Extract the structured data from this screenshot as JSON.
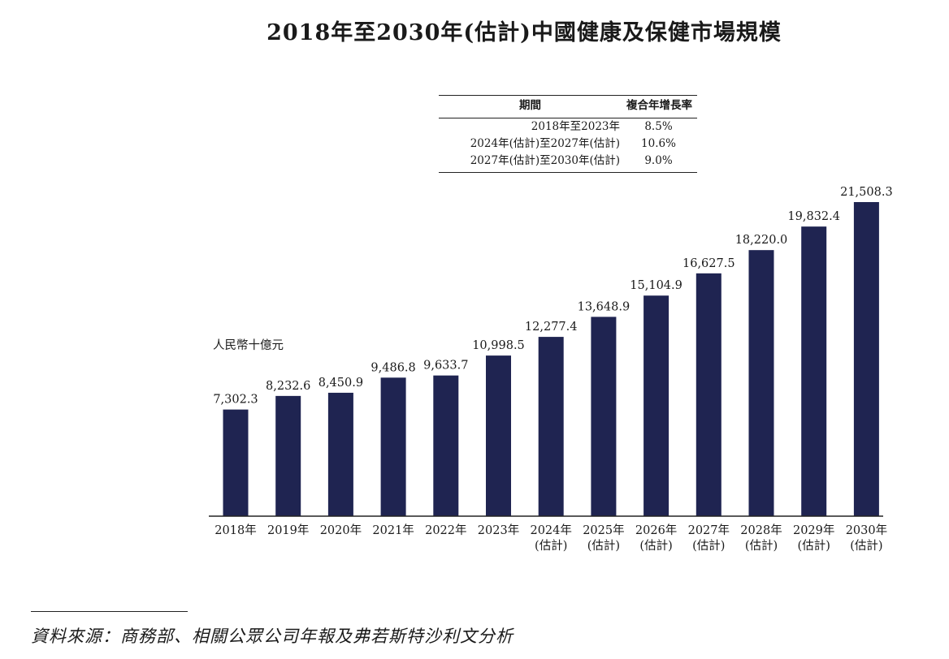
{
  "title": "2018年至2030年(估計)中國健康及保健市場規模",
  "cagr_table": {
    "header": {
      "period": "期間",
      "rate": "複合年增長率"
    },
    "rows": [
      {
        "period": "2018年至2023年",
        "rate": "8.5%"
      },
      {
        "period": "2024年(估計)至2027年(估計)",
        "rate": "10.6%"
      },
      {
        "period": "2027年(估計)至2030年(估計)",
        "rate": "9.0%"
      }
    ]
  },
  "unit_label": "人民幣十億元",
  "source": "資料來源：商務部、相關公眾公司年報及弗若斯特沙利文分析",
  "colors": {
    "bar": "#1f2451",
    "text": "#1a1a1a",
    "axis": "#222222"
  },
  "chart_data": {
    "type": "bar",
    "title": "2018年至2030年(估計)中國健康及保健市場規模",
    "ylabel": "人民幣十億元",
    "xlabel": "",
    "ylim": [
      0,
      23000
    ],
    "grid": false,
    "categories": [
      {
        "year": "2018年",
        "note": ""
      },
      {
        "year": "2019年",
        "note": ""
      },
      {
        "year": "2020年",
        "note": ""
      },
      {
        "year": "2021年",
        "note": ""
      },
      {
        "year": "2022年",
        "note": ""
      },
      {
        "year": "2023年",
        "note": ""
      },
      {
        "year": "2024年",
        "note": "(估計)"
      },
      {
        "year": "2025年",
        "note": "(估計)"
      },
      {
        "year": "2026年",
        "note": "(估計)"
      },
      {
        "year": "2027年",
        "note": "(估計)"
      },
      {
        "year": "2028年",
        "note": "(估計)"
      },
      {
        "year": "2029年",
        "note": "(估計)"
      },
      {
        "year": "2030年",
        "note": "(估計)"
      }
    ],
    "values": [
      7302.3,
      8232.6,
      8450.9,
      9486.8,
      9633.7,
      10998.5,
      12277.4,
      13648.9,
      15104.9,
      16627.5,
      18220.0,
      19832.4,
      21508.3
    ],
    "labels": [
      "7,302.3",
      "8,232.6",
      "8,450.9",
      "9,486.8",
      "9,633.7",
      "10,998.5",
      "12,277.4",
      "13,648.9",
      "15,104.9",
      "16,627.5",
      "18,220.0",
      "19,832.4",
      "21,508.3"
    ]
  }
}
